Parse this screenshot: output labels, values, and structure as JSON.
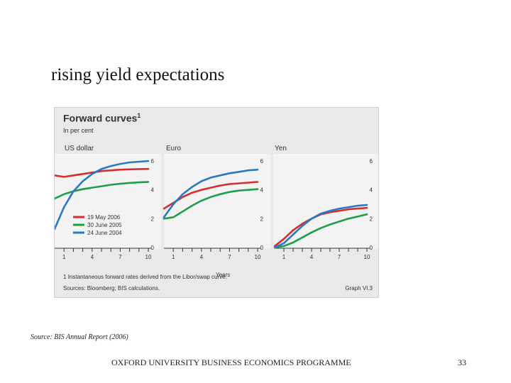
{
  "slide": {
    "title": "rising yield expectations",
    "source_label": "Source:",
    "source_text": "BIS Annual Report (2006)",
    "footer": "OXFORD UNIVERSITY BUSINESS ECONOMICS PROGRAMME",
    "page_number": "33"
  },
  "chart_data": {
    "type": "line",
    "title": "Forward curves",
    "title_footnote_marker": "1",
    "subtitle": "In per cent",
    "xlabel": "Years",
    "x_ticks": [
      1,
      4,
      7,
      10
    ],
    "ylim": [
      0,
      6
    ],
    "y_ticks": [
      0,
      2,
      4,
      6
    ],
    "legend": [
      {
        "name": "19 May 2006",
        "color": "#d62d2d"
      },
      {
        "name": "30 June 2005",
        "color": "#1f9e4a"
      },
      {
        "name": "24 June 2004",
        "color": "#2a78c8"
      }
    ],
    "panels": [
      {
        "name": "US dollar",
        "series": [
          {
            "name": "19 May 2006",
            "x": [
              0,
              1,
              2,
              3,
              4,
              5,
              6,
              7,
              8,
              9,
              10
            ],
            "values": [
              5.0,
              4.9,
              5.0,
              5.1,
              5.2,
              5.3,
              5.35,
              5.4,
              5.42,
              5.44,
              5.45
            ]
          },
          {
            "name": "30 June 2005",
            "x": [
              0,
              1,
              2,
              3,
              4,
              5,
              6,
              7,
              8,
              9,
              10
            ],
            "values": [
              3.4,
              3.7,
              3.9,
              4.05,
              4.15,
              4.25,
              4.35,
              4.42,
              4.48,
              4.52,
              4.55
            ]
          },
          {
            "name": "24 June 2004",
            "x": [
              0,
              1,
              2,
              3,
              4,
              5,
              6,
              7,
              8,
              9,
              10
            ],
            "values": [
              1.3,
              2.8,
              3.9,
              4.6,
              5.1,
              5.45,
              5.65,
              5.8,
              5.9,
              5.95,
              6.0
            ]
          }
        ]
      },
      {
        "name": "Euro",
        "series": [
          {
            "name": "19 May 2006",
            "x": [
              0,
              1,
              2,
              3,
              4,
              5,
              6,
              7,
              8,
              9,
              10
            ],
            "values": [
              2.7,
              3.1,
              3.5,
              3.8,
              4.0,
              4.15,
              4.3,
              4.4,
              4.45,
              4.5,
              4.55
            ]
          },
          {
            "name": "30 June 2005",
            "x": [
              0,
              1,
              2,
              3,
              4,
              5,
              6,
              7,
              8,
              9,
              10
            ],
            "values": [
              2.0,
              2.1,
              2.5,
              2.9,
              3.25,
              3.5,
              3.7,
              3.85,
              3.95,
              4.0,
              4.05
            ]
          },
          {
            "name": "24 June 2004",
            "x": [
              0,
              1,
              2,
              3,
              4,
              5,
              6,
              7,
              8,
              9,
              10
            ],
            "values": [
              2.1,
              3.0,
              3.7,
              4.2,
              4.6,
              4.85,
              5.0,
              5.15,
              5.25,
              5.35,
              5.4
            ]
          }
        ]
      },
      {
        "name": "Yen",
        "series": [
          {
            "name": "19 May 2006",
            "x": [
              0,
              1,
              2,
              3,
              4,
              5,
              6,
              7,
              8,
              9,
              10
            ],
            "values": [
              0.1,
              0.6,
              1.2,
              1.65,
              2.0,
              2.3,
              2.45,
              2.55,
              2.65,
              2.7,
              2.75
            ]
          },
          {
            "name": "30 June 2005",
            "x": [
              0,
              1,
              2,
              3,
              4,
              5,
              6,
              7,
              8,
              9,
              10
            ],
            "values": [
              0.0,
              0.1,
              0.35,
              0.7,
              1.05,
              1.35,
              1.6,
              1.8,
              2.0,
              2.15,
              2.3
            ]
          },
          {
            "name": "24 June 2004",
            "x": [
              0,
              1,
              2,
              3,
              4,
              5,
              6,
              7,
              8,
              9,
              10
            ],
            "values": [
              0.0,
              0.3,
              0.9,
              1.5,
              2.0,
              2.35,
              2.55,
              2.7,
              2.8,
              2.9,
              2.95
            ]
          }
        ]
      }
    ],
    "footnote": "Instantaneous forward rates derived from the Libor/swap curve.",
    "footnote_marker": "1",
    "sources": "Sources: Bloomberg; BIS calculations.",
    "graph_id": "Graph VI.3"
  }
}
